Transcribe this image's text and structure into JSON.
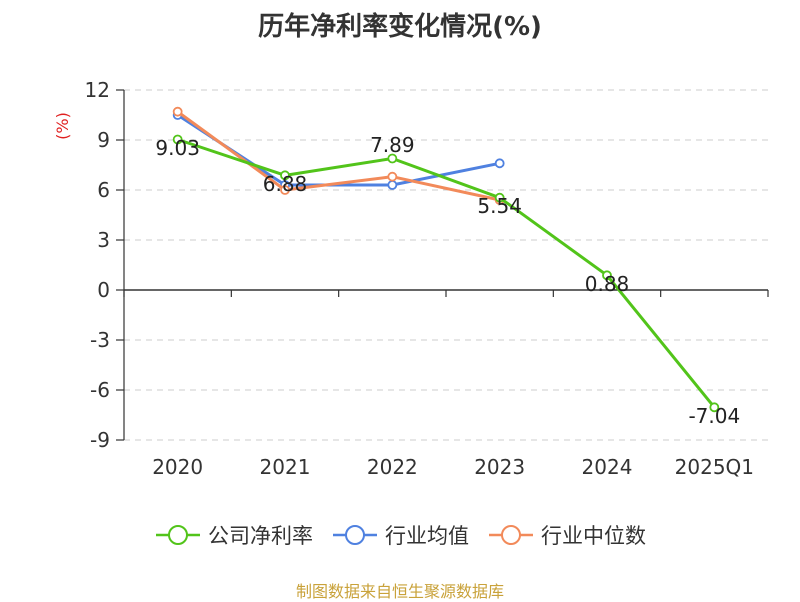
{
  "chart_data": {
    "type": "line",
    "title": "历年净利率变化情况(%)",
    "ylabel": "(%)",
    "categories": [
      "2020",
      "2021",
      "2022",
      "2023",
      "2024",
      "2025Q1"
    ],
    "ylim": [
      -9,
      12
    ],
    "yticks": [
      "12",
      "9",
      "6",
      "3",
      "0",
      "-3",
      "-6",
      "-9"
    ],
    "grid": true,
    "legend_position": "bottom",
    "series": [
      {
        "name": "公司净利率",
        "color": "#52c41a",
        "values": [
          9.03,
          6.88,
          7.89,
          5.54,
          0.88,
          -7.04
        ],
        "labels": [
          "9.03",
          "6.88",
          "7.89",
          "5.54",
          "0.88",
          "-7.04"
        ]
      },
      {
        "name": "行业均值",
        "color": "#4f81e0",
        "values": [
          10.5,
          6.3,
          6.3,
          7.6,
          null,
          null
        ]
      },
      {
        "name": "行业中位数",
        "color": "#f28a5a",
        "values": [
          10.7,
          6.0,
          6.8,
          5.4,
          null,
          null
        ]
      }
    ]
  },
  "source": "制图数据来自恒生聚源数据库"
}
